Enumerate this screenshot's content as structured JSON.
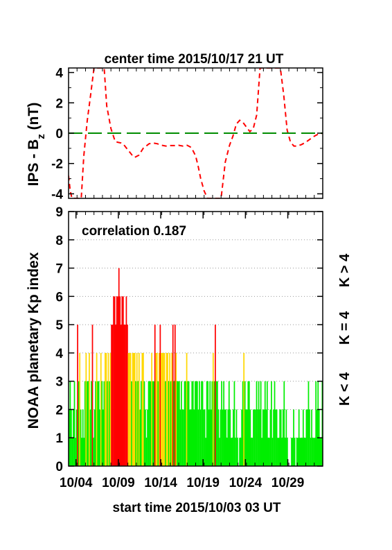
{
  "chart_data": [
    {
      "type": "line",
      "title": "center time 2015/10/17 21 UT",
      "ylabel_main": "IPS - B",
      "ylabel_sub": "z",
      "ylabel_unit": " (nT)",
      "ylim": [
        -4.3,
        4.3
      ],
      "yticks": [
        -4,
        -2,
        0,
        2,
        4
      ],
      "xlim_days": [
        0,
        30
      ],
      "series": [
        {
          "color": "#ff0000",
          "style": "dashed",
          "x": [
            0.0,
            0.2,
            0.4,
            1.5,
            1.8,
            2.2,
            2.6,
            3.0,
            3.3,
            3.5,
            3.8,
            4.2,
            4.5,
            5.0,
            5.5,
            5.8,
            6.2,
            6.5,
            7.0,
            7.5,
            7.8,
            8.3,
            8.8,
            9.5,
            10.0,
            10.5,
            11.0,
            11.5,
            12.0,
            12.5,
            13.0,
            13.5,
            14.0,
            14.5,
            15.0,
            15.3,
            15.6,
            16.0,
            16.4,
            16.8,
            17.2,
            17.6,
            18.0,
            18.5,
            19.0,
            19.4,
            19.8,
            20.2,
            20.6,
            21.0,
            21.4,
            21.8,
            22.2,
            22.6,
            23.0,
            23.4,
            23.8,
            24.2,
            24.6,
            25.0,
            25.4,
            25.8,
            26.2,
            26.6,
            27.0,
            27.5,
            28.0,
            28.5,
            29.0,
            29.5,
            30.0
          ],
          "y": [
            -2.8,
            -3.8,
            -4.3,
            -4.3,
            -1.5,
            0.8,
            2.5,
            4.3,
            4.3,
            4.3,
            4.3,
            4.3,
            1.8,
            0.3,
            -0.55,
            -0.6,
            -0.65,
            -0.75,
            -1.1,
            -1.45,
            -1.6,
            -1.45,
            -1.0,
            -0.7,
            -0.65,
            -0.7,
            -0.8,
            -0.85,
            -0.82,
            -0.82,
            -0.8,
            -0.85,
            -0.8,
            -0.95,
            -1.5,
            -2.2,
            -3.0,
            -3.8,
            -4.3,
            -4.3,
            -4.3,
            -4.3,
            -4.3,
            -1.9,
            -0.8,
            -0.2,
            0.6,
            0.85,
            0.7,
            0.4,
            0.1,
            0.3,
            1.2,
            4.3,
            4.3,
            4.3,
            4.3,
            4.3,
            4.3,
            4.3,
            2.5,
            0.2,
            -0.6,
            -0.85,
            -0.85,
            -0.75,
            -0.6,
            -0.4,
            -0.2,
            -0.05,
            0.0
          ]
        },
        {
          "color": "#008c00",
          "style": "long-dashed",
          "x": [
            0,
            30
          ],
          "y": [
            0,
            0
          ]
        }
      ],
      "xticks_minor_every_days": 1
    },
    {
      "type": "bar",
      "annotation": "correlation 0.187",
      "ylabel": "NOAA planetary Kp index",
      "xlabel": "start time 2015/10/03 03 UT",
      "xtick_labels": [
        "10/04",
        "10/09",
        "10/14",
        "10/19",
        "10/24",
        "10/29"
      ],
      "xtick_days": [
        0.875,
        5.875,
        10.875,
        15.875,
        20.875,
        25.875
      ],
      "ylim": [
        0,
        9
      ],
      "yticks": [
        0,
        1,
        2,
        3,
        4,
        5,
        6,
        7,
        8,
        9
      ],
      "grid": "horizontal dotted",
      "xlim_days": [
        0,
        30
      ],
      "legend": [
        {
          "label": "K < 4",
          "color": "#00ee00"
        },
        {
          "label": "K = 4",
          "color": "#ffd800"
        },
        {
          "label": "K > 4",
          "color": "#ff0000"
        }
      ],
      "kp_3hourly": [
        2,
        3,
        2,
        1,
        2,
        3,
        1,
        2,
        5,
        3,
        4,
        2,
        1,
        2,
        1,
        3,
        4,
        3,
        3,
        4,
        2,
        3,
        5,
        1,
        2,
        3,
        4,
        3,
        3,
        2,
        4,
        3,
        2,
        3,
        4,
        4,
        3,
        4,
        3,
        4,
        5,
        5,
        6,
        6,
        5,
        6,
        6,
        7,
        6,
        5,
        6,
        6,
        5,
        5,
        6,
        5,
        4,
        4,
        4,
        3,
        4,
        4,
        4,
        3,
        4,
        3,
        4,
        2,
        3,
        4,
        4,
        3,
        2,
        1,
        2,
        3,
        3,
        3,
        4,
        3,
        3,
        5,
        4,
        4,
        3,
        4,
        5,
        4,
        4,
        4,
        4,
        3,
        4,
        4,
        3,
        4,
        3,
        4,
        5,
        3,
        5,
        4,
        3,
        3,
        3,
        2,
        3,
        2,
        2,
        3,
        3,
        4,
        3,
        3,
        2,
        2,
        3,
        3,
        2,
        3,
        3,
        3,
        2,
        3,
        2,
        3,
        3,
        2,
        2,
        1,
        3,
        3,
        2,
        3,
        2,
        3,
        4,
        3,
        5,
        3,
        3,
        2,
        1,
        2,
        3,
        2,
        3,
        2,
        2,
        1,
        2,
        3,
        2,
        1,
        1,
        2,
        3,
        1,
        2,
        1,
        0,
        1,
        1,
        2,
        3,
        4,
        3,
        2,
        2,
        3,
        3,
        2,
        1,
        1,
        2,
        2,
        2,
        3,
        2,
        3,
        2,
        3,
        1,
        2,
        2,
        3,
        2,
        3,
        1,
        1,
        2,
        3,
        1,
        2,
        3,
        2,
        2,
        1,
        1,
        2,
        2,
        1,
        2,
        3,
        1,
        2,
        1,
        0,
        0,
        0,
        1,
        1,
        2,
        1,
        0,
        1,
        1,
        2,
        1,
        1,
        1,
        2,
        1,
        1,
        2,
        2,
        3,
        2,
        1,
        2,
        1,
        1,
        1,
        3,
        2,
        3,
        2,
        1,
        1,
        3
      ],
      "kp_color_rule": "green if Kp<4, yellow if Kp=4, red if Kp>4"
    }
  ]
}
